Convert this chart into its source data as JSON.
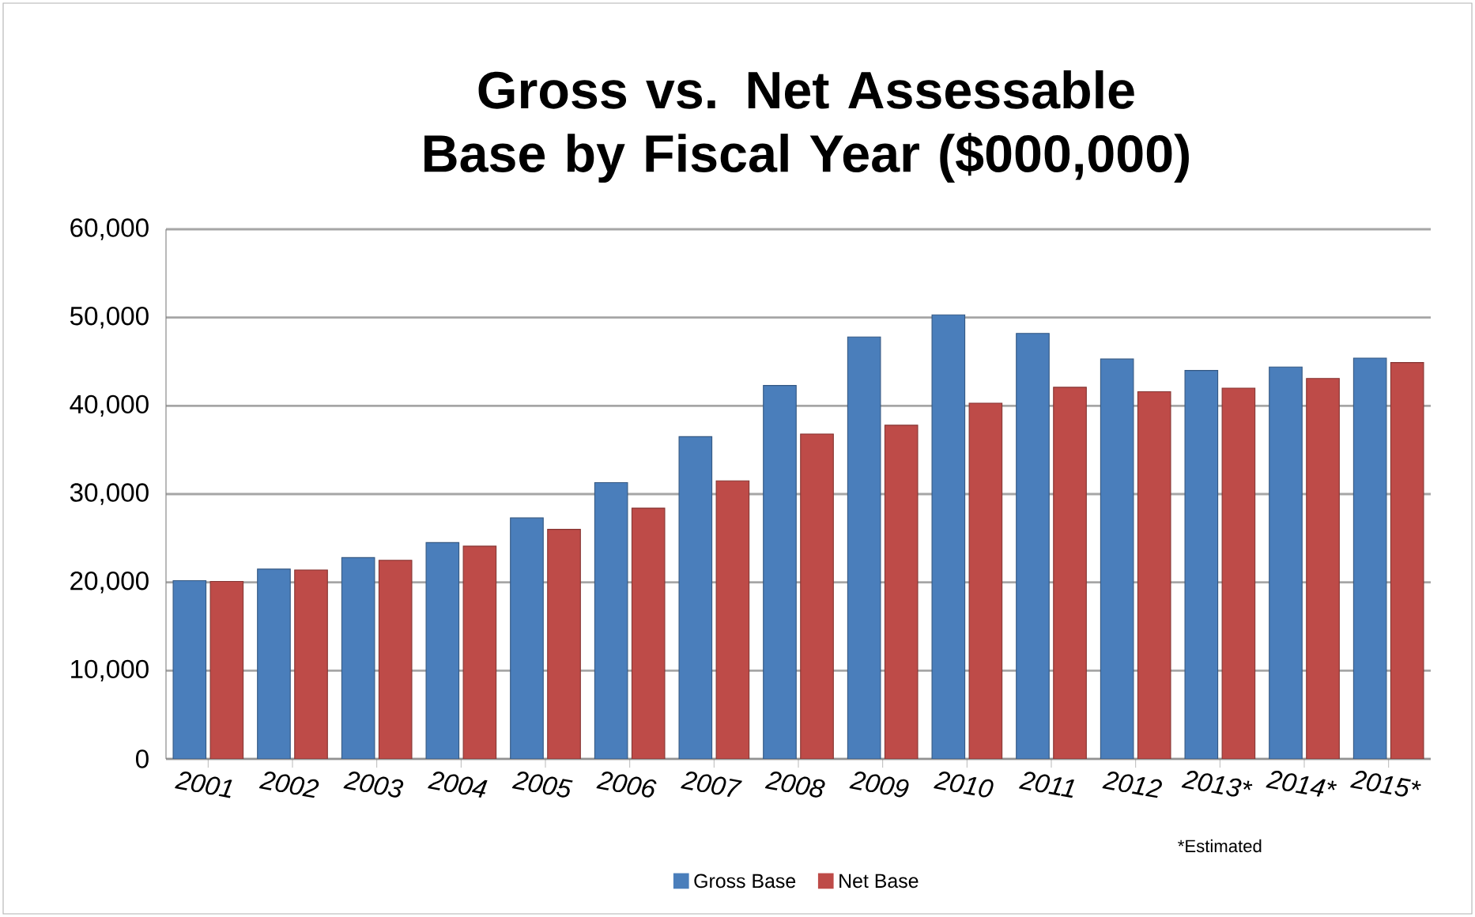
{
  "chart_data": {
    "type": "bar",
    "title": "Gross vs. Net Assessable Base by Fiscal Year ($000,000)",
    "categories": [
      "2001",
      "2002",
      "2003",
      "2004",
      "2005",
      "2006",
      "2007",
      "2008",
      "2009",
      "2010",
      "2011",
      "2012",
      "2013*",
      "2014*",
      "2015*"
    ],
    "series": [
      {
        "name": "Gross  Base",
        "color": "#4a7ebb",
        "values": [
          20200,
          21500,
          22800,
          24500,
          27300,
          31300,
          36500,
          42300,
          47800,
          50300,
          48200,
          45300,
          44000,
          44400,
          45400
        ]
      },
      {
        "name": "Net Base",
        "color": "#be4b48",
        "values": [
          20100,
          21400,
          22500,
          24100,
          26000,
          28400,
          31500,
          36800,
          37800,
          40300,
          42100,
          41600,
          42000,
          43100,
          44900
        ]
      }
    ],
    "ylim": [
      0,
      60000
    ],
    "yticks": [
      {
        "value": 0,
        "label": "0"
      },
      {
        "value": 10000,
        "label": "10,000"
      },
      {
        "value": 20000,
        "label": "20,000"
      },
      {
        "value": 30000,
        "label": "30,000"
      },
      {
        "value": 40000,
        "label": "40,000"
      },
      {
        "value": 50000,
        "label": "50,000"
      },
      {
        "value": 60000,
        "label": "60,000"
      }
    ],
    "grid": "y",
    "legend": "bottom",
    "annotations": [
      "*Estimated"
    ]
  }
}
